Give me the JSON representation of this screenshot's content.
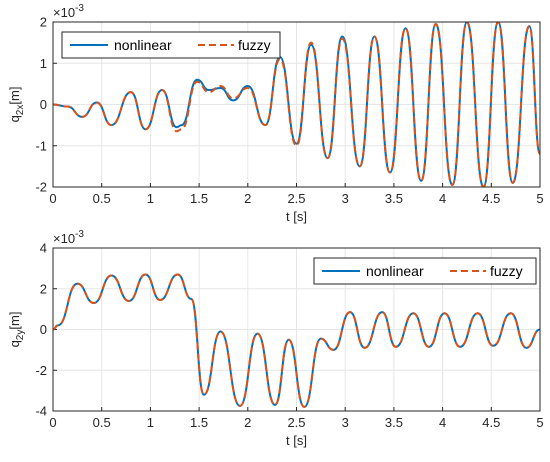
{
  "chart_data": [
    {
      "type": "line",
      "exponent_label": "×10",
      "exponent_power": "-3",
      "xlabel": "t [s]",
      "ylabel_main": "q",
      "ylabel_sub": "2x",
      "ylabel_unit": "[m]",
      "xlim": [
        0,
        5
      ],
      "ylim": [
        -2,
        2
      ],
      "xticks": [
        "0",
        "0.5",
        "1",
        "1.5",
        "2",
        "2.5",
        "3",
        "3.5",
        "4",
        "4.5",
        "5"
      ],
      "yticks": [
        "-2",
        "-1",
        "0",
        "1",
        "2"
      ],
      "grid": true,
      "legend_position": "top-left",
      "series": [
        {
          "name": "nonlinear",
          "color": "#0072BD",
          "dash": "solid",
          "x": [
            0,
            0.15,
            0.3,
            0.45,
            0.6,
            0.8,
            0.95,
            1.12,
            1.27,
            1.32,
            1.48,
            1.6,
            1.72,
            1.85,
            2.0,
            2.18,
            2.33,
            2.5,
            2.65,
            2.82,
            2.97,
            3.15,
            3.3,
            3.46,
            3.62,
            3.78,
            3.93,
            4.1,
            4.25,
            4.42,
            4.57,
            4.72,
            4.89,
            5.0
          ],
          "y": [
            0,
            -0.05,
            -0.3,
            0.05,
            -0.5,
            0.3,
            -0.6,
            0.35,
            -0.55,
            -0.5,
            0.6,
            0.35,
            0.4,
            0.1,
            0.45,
            -0.5,
            1.15,
            -0.95,
            1.45,
            -1.3,
            1.65,
            -1.5,
            1.65,
            -1.65,
            1.85,
            -1.85,
            1.95,
            -1.95,
            2.0,
            -2.0,
            2.0,
            -1.9,
            1.9,
            -1.2
          ]
        },
        {
          "name": "fuzzy",
          "color": "#D95319",
          "dash": "dashed",
          "x": [
            0,
            0.15,
            0.3,
            0.45,
            0.6,
            0.8,
            0.95,
            1.12,
            1.27,
            1.32,
            1.48,
            1.6,
            1.72,
            1.85,
            2.0,
            2.18,
            2.33,
            2.5,
            2.65,
            2.82,
            2.97,
            3.15,
            3.3,
            3.46,
            3.62,
            3.78,
            3.93,
            4.1,
            4.25,
            4.42,
            4.57,
            4.72,
            4.89,
            5.0
          ],
          "y": [
            0,
            -0.05,
            -0.3,
            0.05,
            -0.5,
            0.3,
            -0.6,
            0.35,
            -0.65,
            -0.6,
            0.55,
            0.3,
            0.45,
            0.15,
            0.4,
            -0.5,
            1.1,
            -1.0,
            1.5,
            -1.3,
            1.6,
            -1.5,
            1.65,
            -1.65,
            1.85,
            -1.85,
            1.95,
            -1.95,
            2.0,
            -2.0,
            2.0,
            -1.9,
            1.9,
            -1.2
          ]
        }
      ]
    },
    {
      "type": "line",
      "exponent_label": "×10",
      "exponent_power": "-3",
      "xlabel": "t [s]",
      "ylabel_main": "q",
      "ylabel_sub": "2y",
      "ylabel_unit": "[m]",
      "xlim": [
        0,
        5
      ],
      "ylim": [
        -4,
        4
      ],
      "xticks": [
        "0",
        "0.5",
        "1",
        "1.5",
        "2",
        "2.5",
        "3",
        "3.5",
        "4",
        "4.5",
        "5"
      ],
      "yticks": [
        "-4",
        "-2",
        "0",
        "2",
        "4"
      ],
      "grid": true,
      "legend_position": "top-right",
      "series": [
        {
          "name": "nonlinear",
          "color": "#0072BD",
          "dash": "solid",
          "x": [
            0,
            0.05,
            0.25,
            0.42,
            0.6,
            0.78,
            0.95,
            1.1,
            1.28,
            1.42,
            1.55,
            1.72,
            1.92,
            2.1,
            2.28,
            2.42,
            2.58,
            2.75,
            2.88,
            3.05,
            3.2,
            3.38,
            3.52,
            3.7,
            3.86,
            4.02,
            4.18,
            4.36,
            4.52,
            4.7,
            4.86,
            5.0
          ],
          "y": [
            0,
            0.2,
            2.25,
            1.3,
            2.65,
            1.4,
            2.7,
            1.45,
            2.7,
            1.5,
            -3.2,
            -0.1,
            -3.75,
            -0.2,
            -3.7,
            -0.5,
            -3.8,
            -0.45,
            -1.0,
            0.85,
            -0.9,
            0.85,
            -0.85,
            0.8,
            -0.85,
            0.8,
            -0.85,
            0.8,
            -0.8,
            0.8,
            -0.9,
            0.0
          ]
        },
        {
          "name": "fuzzy",
          "color": "#D95319",
          "dash": "dashed",
          "x": [
            0,
            0.05,
            0.25,
            0.42,
            0.6,
            0.78,
            0.95,
            1.1,
            1.28,
            1.42,
            1.55,
            1.72,
            1.92,
            2.1,
            2.28,
            2.42,
            2.58,
            2.75,
            2.88,
            3.05,
            3.2,
            3.38,
            3.52,
            3.7,
            3.86,
            4.02,
            4.18,
            4.36,
            4.52,
            4.7,
            4.86,
            5.0
          ],
          "y": [
            0,
            0.2,
            2.25,
            1.3,
            2.65,
            1.4,
            2.7,
            1.45,
            2.7,
            1.5,
            -3.2,
            -0.1,
            -3.75,
            -0.2,
            -3.7,
            -0.5,
            -3.8,
            -0.45,
            -1.0,
            0.85,
            -0.9,
            0.85,
            -0.85,
            0.8,
            -0.85,
            0.8,
            -0.85,
            0.8,
            -0.8,
            0.8,
            -0.9,
            0.0
          ]
        }
      ]
    }
  ]
}
